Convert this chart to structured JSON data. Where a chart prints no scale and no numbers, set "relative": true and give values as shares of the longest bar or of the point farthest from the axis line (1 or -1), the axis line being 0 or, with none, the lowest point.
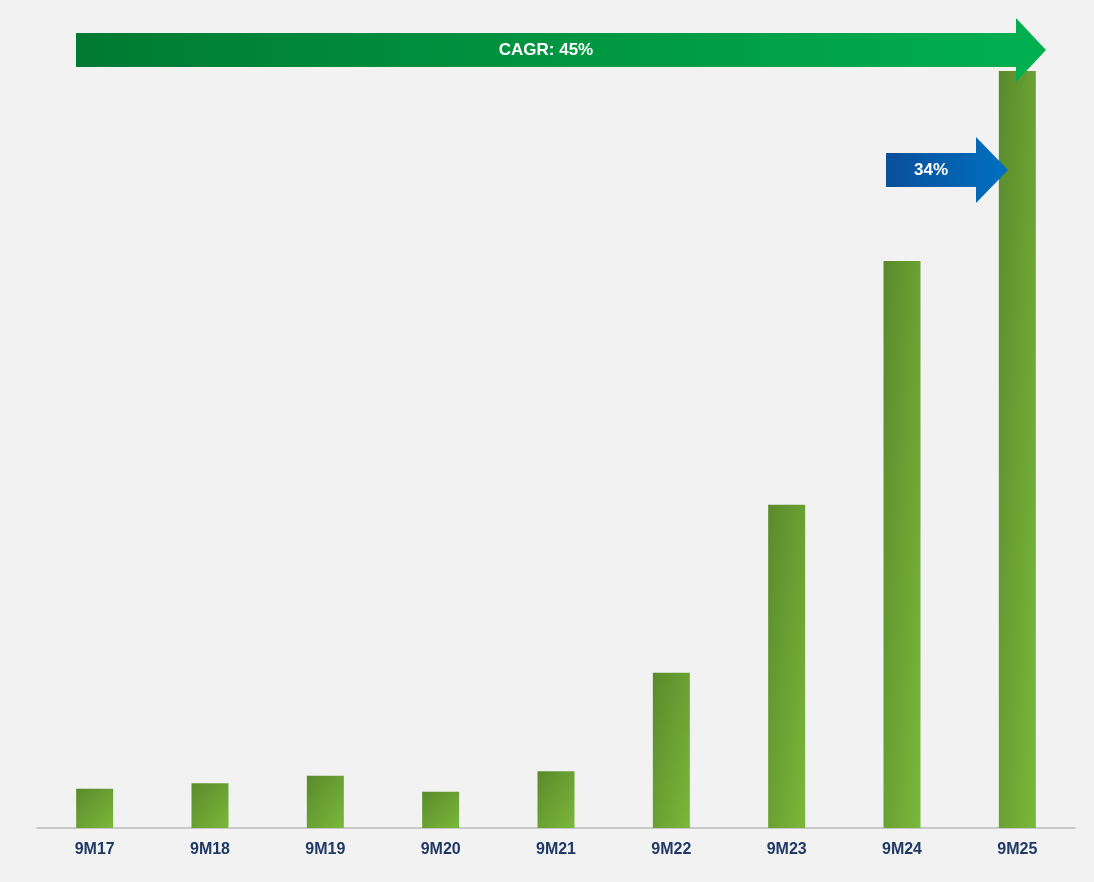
{
  "chart_data": {
    "type": "bar",
    "relative": true,
    "categories": [
      "9M17",
      "9M18",
      "9M19",
      "9M20",
      "9M21",
      "9M22",
      "9M23",
      "9M24",
      "9M25"
    ],
    "values": [
      0.052,
      0.059,
      0.069,
      0.048,
      0.075,
      0.205,
      0.427,
      0.749,
      1
    ],
    "color": "#7ab83a",
    "annotations": [
      "CAGR: 45%",
      "34%"
    ]
  }
}
